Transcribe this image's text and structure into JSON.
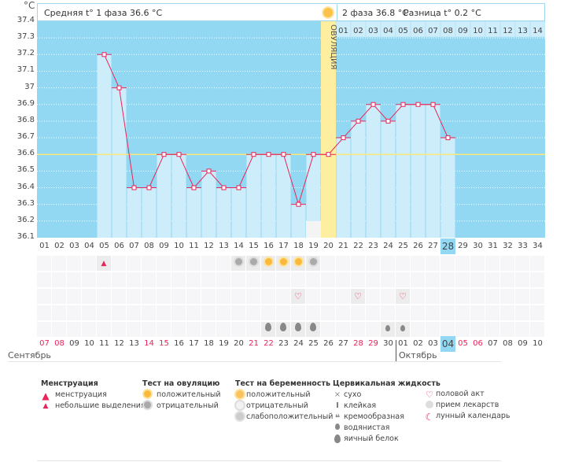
{
  "unit": "°C",
  "y_ticks": [
    "37.4",
    "37.3",
    "37.2",
    "37.1",
    "37",
    "36.9",
    "36.8",
    "36.7",
    "36.6",
    "36.5",
    "36.4",
    "36.3",
    "36.2",
    "36.1"
  ],
  "header": {
    "phase1": "Средняя t° 1 фаза 36.6 °C",
    "phase2": "2 фаза 36.8 °C",
    "diff": "Разница t° 0.2 °C"
  },
  "ovulation_label": "ОВУЛЯЦИЯ",
  "ovulation_day": 20,
  "coverline": 36.6,
  "current_day": 28,
  "colors": {
    "bg": "#92d8f2",
    "bar": "#cdedfb",
    "line": "#e8245a",
    "ovulation": "#fdeea0",
    "coverline": "#ffe97a",
    "today": "#92d8f2"
  },
  "phase2_days": [
    "01",
    "02",
    "03",
    "04",
    "05",
    "06",
    "07",
    "08",
    "09",
    "10",
    "11",
    "12",
    "13",
    "14"
  ],
  "cycle_days": [
    "01",
    "02",
    "03",
    "04",
    "05",
    "06",
    "07",
    "08",
    "09",
    "10",
    "11",
    "12",
    "13",
    "14",
    "15",
    "16",
    "17",
    "18",
    "19",
    "20",
    "21",
    "22",
    "23",
    "24",
    "25",
    "26",
    "27",
    "28",
    "29",
    "30",
    "31",
    "32",
    "33",
    "34"
  ],
  "temps": {
    "5": 37.2,
    "6": 37.0,
    "7": 36.4,
    "8": 36.4,
    "9": 36.6,
    "10": 36.6,
    "11": 36.4,
    "12": 36.5,
    "13": 36.4,
    "14": 36.4,
    "15": 36.6,
    "16": 36.6,
    "17": 36.6,
    "18": 36.3,
    "19": 36.6,
    "20": 36.6,
    "21": 36.7,
    "22": 36.8,
    "23": 36.9,
    "24": 36.8,
    "25": 36.9,
    "26": 36.9,
    "27": 36.9,
    "28": 36.7
  },
  "moon_day": 19,
  "dates": [
    "07",
    "08",
    "09",
    "10",
    "11",
    "12",
    "13",
    "14",
    "15",
    "16",
    "17",
    "18",
    "19",
    "20",
    "21",
    "22",
    "23",
    "24",
    "25",
    "26",
    "27",
    "28",
    "29",
    "30",
    "01",
    "02",
    "03",
    "04",
    "05",
    "06",
    "07",
    "08",
    "09",
    "10"
  ],
  "weekend_idx": [
    0,
    1,
    7,
    8,
    14,
    15,
    21,
    22,
    28,
    29
  ],
  "months": {
    "sep": "Сентябрь",
    "oct": "Октябрь"
  },
  "rows": [
    {
      "5": "spotting",
      "14": "ov-neg",
      "15": "ov-neg",
      "16": "ov-pos",
      "17": "ov-pos",
      "18": "ov-pos",
      "19": "ov-neg"
    },
    {},
    {
      "18": "heart",
      "22": "heart",
      "25": "heart"
    },
    {},
    {
      "16": "eggwhite",
      "17": "eggwhite",
      "18": "eggwhite",
      "19": "eggwhite",
      "24": "watery",
      "25": "watery"
    }
  ],
  "legend": [
    {
      "title": "Менструация",
      "items": [
        {
          "icon": "menstruation",
          "label": "менструация"
        },
        {
          "icon": "spotting",
          "label": "небольшие выделения"
        }
      ]
    },
    {
      "title": "Тест на овуляцию",
      "items": [
        {
          "icon": "ov-pos",
          "label": "положительный"
        },
        {
          "icon": "ov-neg",
          "label": "отрицательный"
        }
      ]
    },
    {
      "title": "Тест на беременность",
      "items": [
        {
          "icon": "preg-pos",
          "label": "положительный"
        },
        {
          "icon": "preg-neg",
          "label": "отрицательный"
        },
        {
          "icon": "preg-weak",
          "label": "слабоположительный"
        }
      ]
    },
    {
      "title": "Цервикальная жидкость",
      "items": [
        {
          "icon": "dry",
          "label": "сухо"
        },
        {
          "icon": "sticky",
          "label": "клейкая"
        },
        {
          "icon": "creamy",
          "label": "кремообразная"
        },
        {
          "icon": "watery",
          "label": "водянистая"
        },
        {
          "icon": "eggwhite",
          "label": "яичный белок"
        }
      ]
    },
    {
      "title": "",
      "items": [
        {
          "icon": "heart",
          "label": "половой акт"
        },
        {
          "icon": "pill",
          "label": "прием лекарств"
        },
        {
          "icon": "moon",
          "label": "лунный календарь"
        }
      ]
    }
  ]
}
